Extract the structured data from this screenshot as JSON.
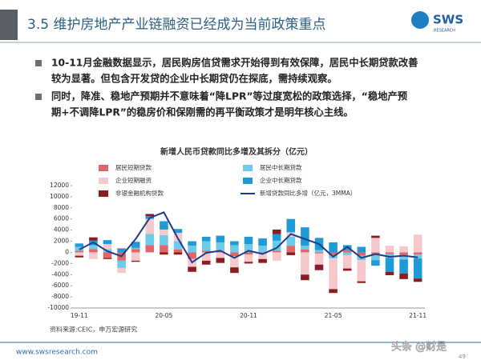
{
  "header": {
    "title": "3.5 维护房地产产业链融资已经成为当前政策重点",
    "logo": "SWS",
    "logo_sub": "RESEARCH"
  },
  "bullets": [
    [
      "10-11月金融数据显示，居民购房信贷需求开始得到有效保障，居民中长期贷款改善",
      "较为显著。但包含开发贷的企业中长期贷仍在探底，需持续观察。"
    ],
    [
      "同时，降准、稳地产预期并不意味着“降LPR”等过度宽松的政策选择，“稳地产预",
      "期+不调降LPR”的稳房价和保刚需的再平衡政策才是明年核心主线。"
    ]
  ],
  "chart_data": {
    "type": "bar",
    "stacked": true,
    "title": "新增人民币贷款同比多增及其拆分（亿元）",
    "source": "资料来源:CEIC，申万宏源研究",
    "categories": [
      "19-11",
      null,
      null,
      null,
      null,
      null,
      "20-05",
      null,
      null,
      null,
      null,
      null,
      "20-11",
      null,
      null,
      null,
      null,
      null,
      "21-05",
      null,
      null,
      null,
      null,
      null,
      "21-11"
    ],
    "ylim": [
      -10000,
      12000
    ],
    "yticks": [
      -10000,
      -8000,
      -6000,
      -4000,
      -2000,
      0,
      2000,
      4000,
      6000,
      8000,
      10000,
      12000
    ],
    "series": [
      {
        "name": "居民短期贷款",
        "color": "#e0666a",
        "values": [
          300,
          600,
          -1000,
          -1500,
          600,
          1300,
          1300,
          500,
          -1200,
          300,
          200,
          -700,
          -400,
          -200,
          300,
          1200,
          500,
          -200,
          -500,
          400,
          -600,
          -400,
          -300,
          -500,
          -400
        ]
      },
      {
        "name": "居民中长期贷款",
        "color": "#6dcbe9",
        "values": [
          700,
          700,
          600,
          -1300,
          200,
          2000,
          1800,
          1500,
          1200,
          1700,
          1600,
          1300,
          1500,
          1200,
          1800,
          1600,
          700,
          400,
          -600,
          -500,
          -800,
          -1000,
          -700,
          -800,
          -700
        ]
      },
      {
        "name": "企业短期融资",
        "color": "#f5c9cb",
        "values": [
          -600,
          -1200,
          900,
          -900,
          -1500,
          2700,
          1000,
          1500,
          -1400,
          -1500,
          -1000,
          -2000,
          -1300,
          -1000,
          -1500,
          800,
          -4000,
          -2000,
          -5500,
          -2400,
          -3800,
          2600,
          1200,
          1100,
          3200
        ]
      },
      {
        "name": "企业中长期贷款",
        "color": "#1e9ad6",
        "values": [
          600,
          800,
          700,
          600,
          1100,
          500,
          1500,
          700,
          800,
          800,
          1200,
          700,
          1300,
          1300,
          1200,
          2400,
          3300,
          2200,
          1800,
          900,
          1000,
          -1000,
          -2500,
          -2500,
          -3600
        ]
      },
      {
        "name": "非银金融机构贷款",
        "color": "#8b1c1f",
        "values": [
          -300,
          600,
          -200,
          100,
          -200,
          400,
          -400,
          -400,
          -900,
          -700,
          -900,
          -1000,
          -300,
          -700,
          800,
          -500,
          -1000,
          -1000,
          -700,
          -400,
          -300,
          400,
          -600,
          -1000,
          -600
        ]
      },
      {
        "name": "新增贷款同比多增（亿元，3MMA）",
        "color": "#1f3a8a",
        "type": "line",
        "values": [
          500,
          1800,
          200,
          -700,
          2400,
          6200,
          7200,
          2500,
          -1800,
          -100,
          300,
          -1000,
          300,
          -300,
          800,
          3300,
          2400,
          1500,
          -800,
          1000,
          -1000,
          -300,
          -800,
          -600,
          -900
        ]
      }
    ]
  },
  "footer": {
    "url": "www.swsresearch.com",
    "page": "49",
    "watermark": "头条 @财是"
  }
}
